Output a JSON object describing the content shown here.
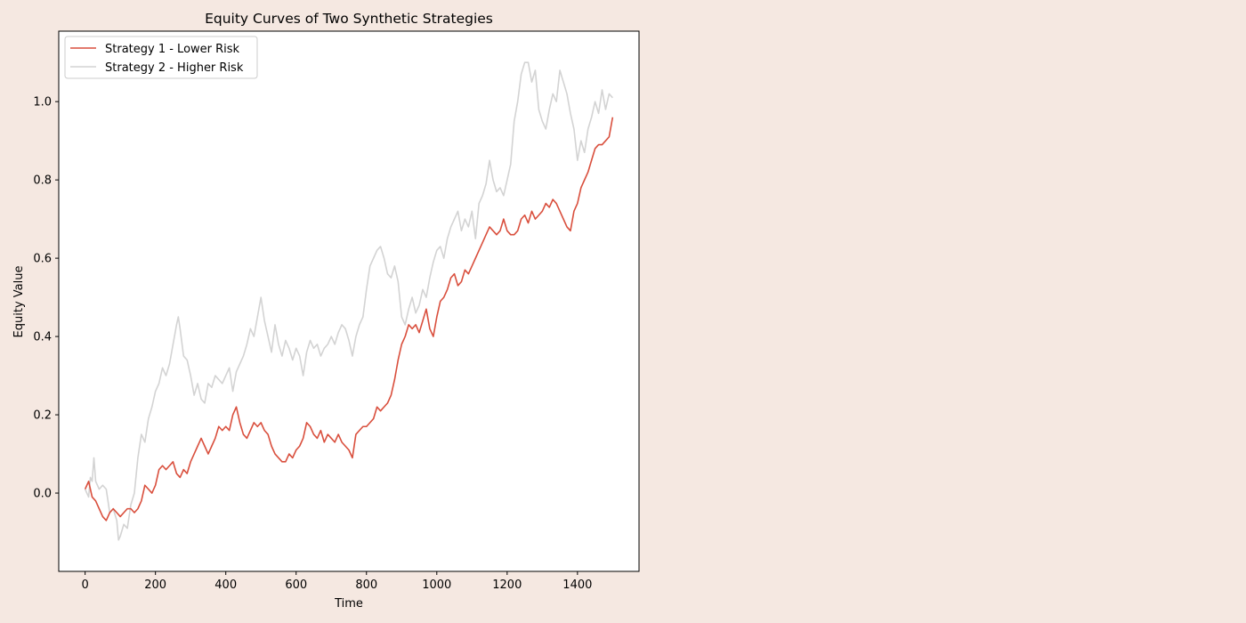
{
  "colors": {
    "figure_background": "#f5e8e1",
    "plot_background": "#ffffff",
    "series1": "#d94f3d",
    "series2": "#d3d3d3"
  },
  "chart_data": {
    "type": "line",
    "title": "Equity Curves of Two Synthetic Strategies",
    "xlabel": "Time",
    "ylabel": "Equity Value",
    "xlim": [
      -75,
      1575
    ],
    "ylim": [
      -0.2,
      1.18
    ],
    "xticks": [
      0,
      200,
      400,
      600,
      800,
      1000,
      1200,
      1400
    ],
    "yticks": [
      0.0,
      0.2,
      0.4,
      0.6,
      0.8,
      1.0
    ],
    "ytick_labels": [
      "0.0",
      "0.2",
      "0.4",
      "0.6",
      "0.8",
      "1.0"
    ],
    "grid": false,
    "legend_position": "upper left",
    "series": [
      {
        "name": "Strategy 2 - Higher Risk",
        "color": "#d3d3d3",
        "x": [
          0,
          10,
          15,
          20,
          25,
          30,
          40,
          50,
          60,
          70,
          80,
          90,
          95,
          100,
          110,
          120,
          130,
          140,
          150,
          160,
          170,
          180,
          190,
          200,
          210,
          220,
          230,
          240,
          250,
          260,
          265,
          270,
          280,
          290,
          300,
          310,
          320,
          330,
          340,
          350,
          360,
          370,
          380,
          390,
          400,
          410,
          420,
          430,
          440,
          450,
          460,
          470,
          480,
          490,
          500,
          510,
          520,
          530,
          540,
          550,
          560,
          570,
          580,
          590,
          600,
          610,
          620,
          630,
          640,
          650,
          660,
          670,
          680,
          690,
          700,
          710,
          720,
          730,
          740,
          750,
          760,
          770,
          780,
          790,
          800,
          810,
          820,
          830,
          840,
          850,
          860,
          870,
          880,
          890,
          900,
          910,
          920,
          930,
          940,
          950,
          960,
          970,
          980,
          990,
          1000,
          1010,
          1020,
          1030,
          1040,
          1050,
          1060,
          1070,
          1080,
          1090,
          1100,
          1110,
          1120,
          1130,
          1140,
          1150,
          1160,
          1170,
          1180,
          1190,
          1200,
          1210,
          1220,
          1230,
          1240,
          1250,
          1260,
          1270,
          1280,
          1290,
          1300,
          1310,
          1320,
          1330,
          1340,
          1350,
          1360,
          1370,
          1380,
          1390,
          1400,
          1410,
          1420,
          1430,
          1440,
          1450,
          1460,
          1470,
          1480,
          1490,
          1500
        ],
        "values": [
          0.01,
          -0.01,
          0.04,
          0.03,
          0.09,
          0.03,
          0.01,
          0.02,
          0.01,
          -0.05,
          -0.04,
          -0.07,
          -0.12,
          -0.11,
          -0.08,
          -0.09,
          -0.03,
          0.0,
          0.09,
          0.15,
          0.13,
          0.19,
          0.22,
          0.26,
          0.28,
          0.32,
          0.3,
          0.33,
          0.38,
          0.43,
          0.45,
          0.42,
          0.35,
          0.34,
          0.3,
          0.25,
          0.28,
          0.24,
          0.23,
          0.28,
          0.27,
          0.3,
          0.29,
          0.28,
          0.3,
          0.32,
          0.26,
          0.31,
          0.33,
          0.35,
          0.38,
          0.42,
          0.4,
          0.45,
          0.5,
          0.44,
          0.4,
          0.36,
          0.43,
          0.38,
          0.35,
          0.39,
          0.37,
          0.34,
          0.37,
          0.35,
          0.3,
          0.36,
          0.39,
          0.37,
          0.38,
          0.35,
          0.37,
          0.38,
          0.4,
          0.38,
          0.41,
          0.43,
          0.42,
          0.39,
          0.35,
          0.4,
          0.43,
          0.45,
          0.52,
          0.58,
          0.6,
          0.62,
          0.63,
          0.6,
          0.56,
          0.55,
          0.58,
          0.54,
          0.45,
          0.43,
          0.47,
          0.5,
          0.46,
          0.48,
          0.52,
          0.5,
          0.55,
          0.59,
          0.62,
          0.63,
          0.6,
          0.65,
          0.68,
          0.7,
          0.72,
          0.67,
          0.7,
          0.68,
          0.72,
          0.65,
          0.74,
          0.76,
          0.79,
          0.85,
          0.8,
          0.77,
          0.78,
          0.76,
          0.8,
          0.84,
          0.95,
          1.0,
          1.07,
          1.1,
          1.1,
          1.05,
          1.08,
          0.98,
          0.95,
          0.93,
          0.98,
          1.02,
          1.0,
          1.08,
          1.05,
          1.02,
          0.97,
          0.93,
          0.85,
          0.9,
          0.87,
          0.93,
          0.96,
          1.0,
          0.97,
          1.03,
          0.98,
          1.02,
          1.01
        ]
      },
      {
        "name": "Strategy 1 - Lower Risk",
        "color": "#d94f3d",
        "x": [
          0,
          10,
          20,
          30,
          40,
          50,
          60,
          70,
          80,
          90,
          100,
          110,
          120,
          130,
          140,
          150,
          160,
          170,
          180,
          190,
          200,
          210,
          220,
          230,
          240,
          250,
          260,
          270,
          280,
          290,
          300,
          310,
          320,
          330,
          340,
          350,
          360,
          370,
          380,
          390,
          400,
          410,
          420,
          430,
          440,
          450,
          460,
          470,
          480,
          490,
          500,
          510,
          520,
          530,
          540,
          550,
          560,
          570,
          580,
          590,
          600,
          610,
          620,
          630,
          640,
          650,
          660,
          670,
          680,
          690,
          700,
          710,
          720,
          730,
          740,
          750,
          760,
          770,
          780,
          790,
          800,
          810,
          820,
          830,
          840,
          850,
          860,
          870,
          880,
          890,
          900,
          910,
          920,
          930,
          940,
          950,
          960,
          970,
          980,
          990,
          1000,
          1010,
          1020,
          1030,
          1040,
          1050,
          1060,
          1070,
          1080,
          1090,
          1100,
          1110,
          1120,
          1130,
          1140,
          1150,
          1160,
          1170,
          1180,
          1190,
          1200,
          1210,
          1220,
          1230,
          1240,
          1250,
          1260,
          1270,
          1280,
          1290,
          1300,
          1310,
          1320,
          1330,
          1340,
          1350,
          1360,
          1370,
          1380,
          1390,
          1400,
          1410,
          1420,
          1430,
          1440,
          1450,
          1460,
          1470,
          1480,
          1490,
          1500
        ],
        "values": [
          0.01,
          0.03,
          -0.01,
          -0.02,
          -0.04,
          -0.06,
          -0.07,
          -0.05,
          -0.04,
          -0.05,
          -0.06,
          -0.05,
          -0.04,
          -0.04,
          -0.05,
          -0.04,
          -0.02,
          0.02,
          0.01,
          0.0,
          0.02,
          0.06,
          0.07,
          0.06,
          0.07,
          0.08,
          0.05,
          0.04,
          0.06,
          0.05,
          0.08,
          0.1,
          0.12,
          0.14,
          0.12,
          0.1,
          0.12,
          0.14,
          0.17,
          0.16,
          0.17,
          0.16,
          0.2,
          0.22,
          0.18,
          0.15,
          0.14,
          0.16,
          0.18,
          0.17,
          0.18,
          0.16,
          0.15,
          0.12,
          0.1,
          0.09,
          0.08,
          0.08,
          0.1,
          0.09,
          0.11,
          0.12,
          0.14,
          0.18,
          0.17,
          0.15,
          0.14,
          0.16,
          0.13,
          0.15,
          0.14,
          0.13,
          0.15,
          0.13,
          0.12,
          0.11,
          0.09,
          0.15,
          0.16,
          0.17,
          0.17,
          0.18,
          0.19,
          0.22,
          0.21,
          0.22,
          0.23,
          0.25,
          0.29,
          0.34,
          0.38,
          0.4,
          0.43,
          0.42,
          0.43,
          0.41,
          0.44,
          0.47,
          0.42,
          0.4,
          0.45,
          0.49,
          0.5,
          0.52,
          0.55,
          0.56,
          0.53,
          0.54,
          0.57,
          0.56,
          0.58,
          0.6,
          0.62,
          0.64,
          0.66,
          0.68,
          0.67,
          0.66,
          0.67,
          0.7,
          0.67,
          0.66,
          0.66,
          0.67,
          0.7,
          0.71,
          0.69,
          0.72,
          0.7,
          0.71,
          0.72,
          0.74,
          0.73,
          0.75,
          0.74,
          0.72,
          0.7,
          0.68,
          0.67,
          0.72,
          0.74,
          0.78,
          0.8,
          0.82,
          0.85,
          0.88,
          0.89,
          0.89,
          0.9,
          0.91,
          0.96
        ]
      }
    ],
    "legend_order": [
      "Strategy 1 - Lower Risk",
      "Strategy 2 - Higher Risk"
    ]
  }
}
